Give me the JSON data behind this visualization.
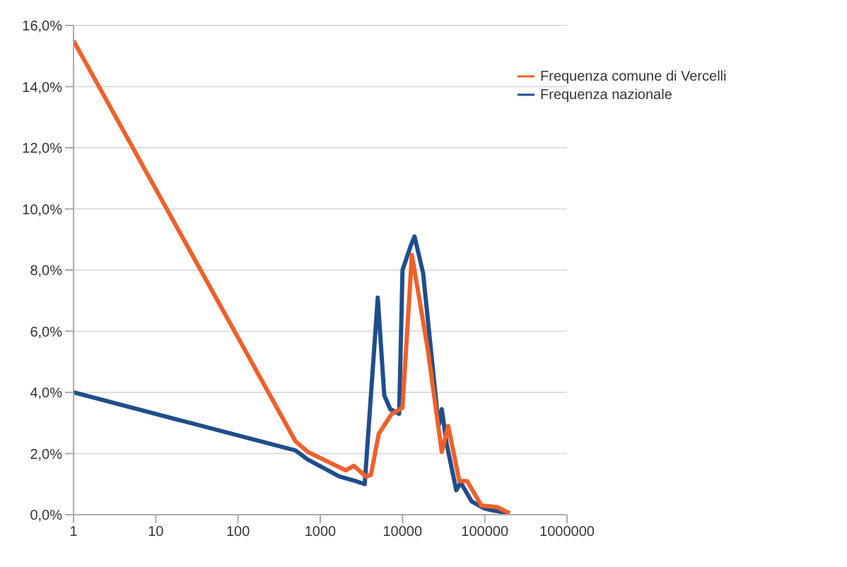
{
  "chart_data": {
    "type": "line",
    "legend": "top right",
    "grid": "y",
    "log": "x",
    "marker": "none",
    "line_style": "solid",
    "xlim": [
      1,
      1000000
    ],
    "xticks": [
      1,
      10,
      100,
      1000,
      10000,
      100000,
      1000000
    ],
    "ylim": [
      0,
      16
    ],
    "yticks": [
      {
        "value": 0,
        "label": "0,0%"
      },
      {
        "value": 2,
        "label": "2,0%"
      },
      {
        "value": 4,
        "label": "4,0%"
      },
      {
        "value": 6,
        "label": "6,0%"
      },
      {
        "value": 8,
        "label": "8,0%"
      },
      {
        "value": 10,
        "label": "10,0%"
      },
      {
        "value": 12,
        "label": "12,0%"
      },
      {
        "value": 14,
        "label": "14,0%"
      },
      {
        "value": 16,
        "label": "16,0%"
      }
    ],
    "series": [
      {
        "name": "Frequenza nazionale",
        "color": "#1f4e8c",
        "x": [
          1,
          500,
          708,
          1700,
          2680,
          3470,
          5000,
          6000,
          7100,
          9100,
          10000,
          12600,
          14000,
          17800,
          27500,
          30000,
          34500,
          45000,
          51000,
          69500,
          100000,
          129000,
          200000
        ],
        "values": [
          4.0,
          2.1,
          1.8,
          1.25,
          1.1,
          1.0,
          7.1,
          3.9,
          3.45,
          3.3,
          8.0,
          8.8,
          9.1,
          7.9,
          2.9,
          3.45,
          2.3,
          0.8,
          1.05,
          0.43,
          0.2,
          0.13,
          0.05
        ]
      },
      {
        "name": "Frequenza comune di Vercelli",
        "color": "#f0602a",
        "x": [
          1,
          500,
          708,
          2040,
          2550,
          3600,
          4130,
          5150,
          7400,
          10000,
          13000,
          20300,
          30000,
          36000,
          49000,
          61000,
          91000,
          141000,
          200000
        ],
        "values": [
          15.5,
          2.4,
          2.05,
          1.45,
          1.6,
          1.25,
          1.3,
          2.65,
          3.3,
          3.5,
          8.5,
          5.4,
          2.05,
          2.9,
          1.1,
          1.1,
          0.3,
          0.25,
          0.05
        ]
      }
    ]
  }
}
